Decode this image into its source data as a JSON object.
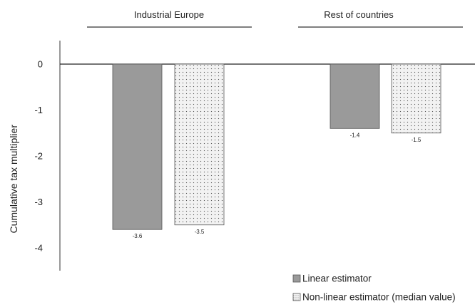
{
  "chart_data": {
    "type": "bar",
    "groups": [
      {
        "name": "Industrial Europe"
      },
      {
        "name": "Rest of countries"
      }
    ],
    "series": [
      {
        "name": "Linear estimator",
        "color": "#9a9a9a",
        "pattern": "solid-grey",
        "values": [
          -3.6,
          -1.4
        ]
      },
      {
        "name": "Non-linear estimator (median value)",
        "color": "#f0f0f0",
        "pattern": "dotted",
        "values": [
          -3.5,
          -1.5
        ]
      }
    ],
    "data_labels": [
      [
        "-3.6",
        "-1.4"
      ],
      [
        "-3.5",
        "-1.5"
      ]
    ],
    "ylabel": "Cumulative tax multiplier",
    "yticks": [
      0,
      -1,
      -2,
      -3,
      -4
    ],
    "ytick_labels": [
      "0",
      "-1",
      "-2",
      "-3",
      "-4"
    ],
    "ylim": [
      -4.4,
      0.5
    ],
    "grid": false,
    "legend_position": "bottom-right"
  }
}
